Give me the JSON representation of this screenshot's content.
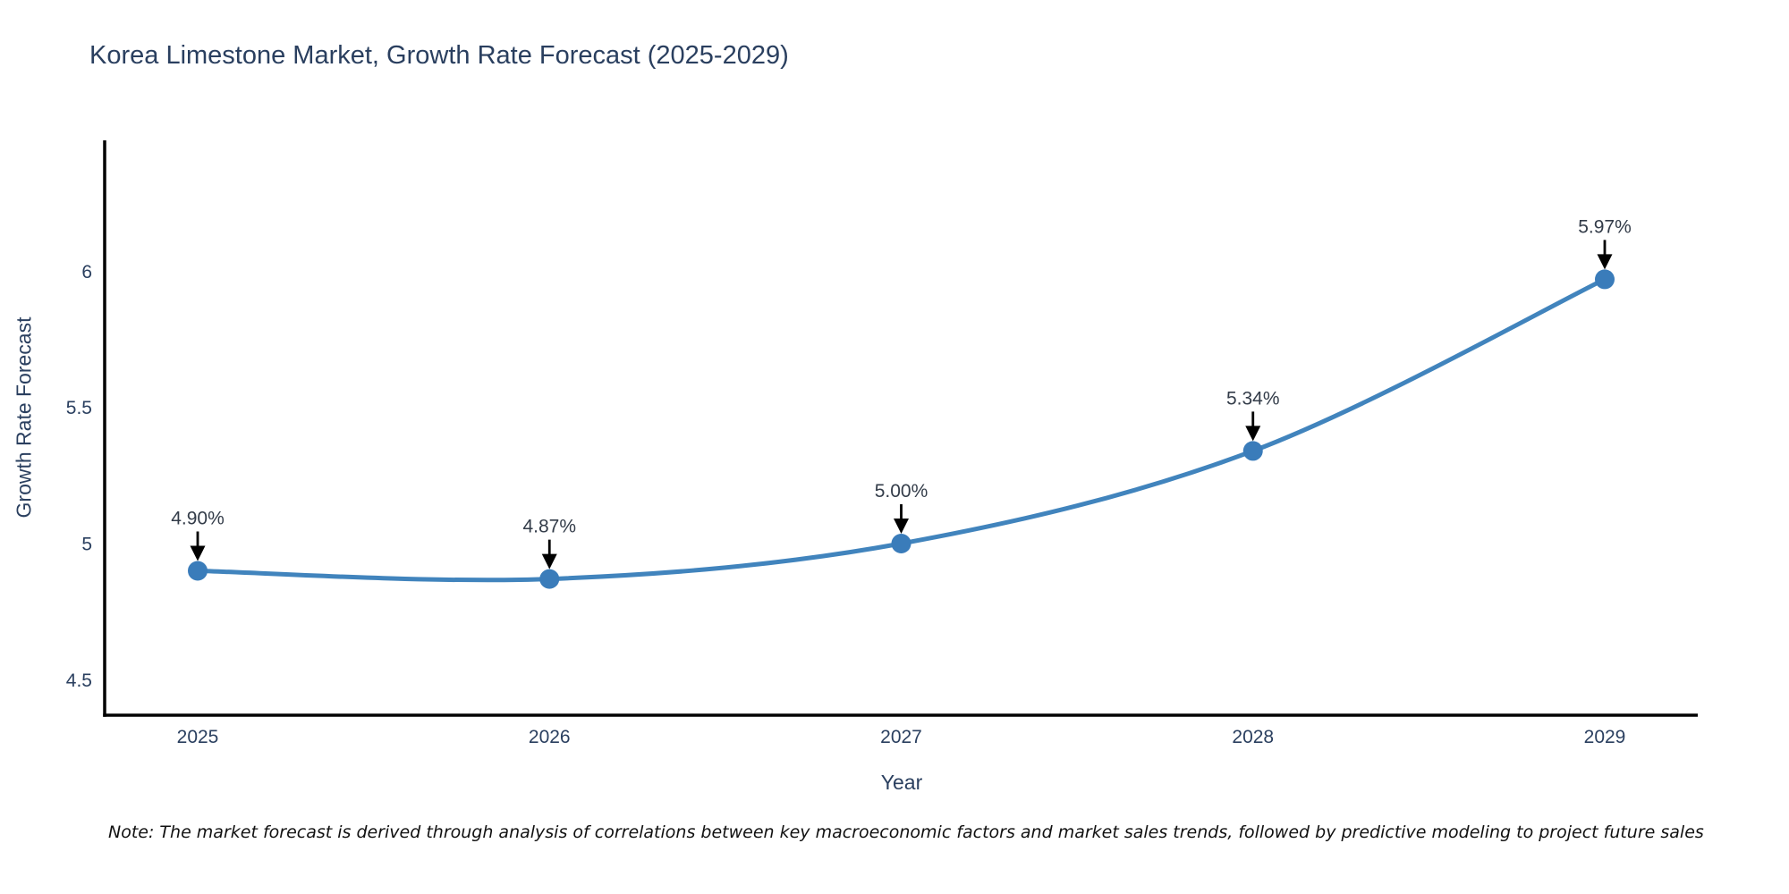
{
  "title": "Korea Limestone Market, Growth Rate Forecast (2025-2029)",
  "note": "Note: The market forecast is derived through analysis of correlations between key macroeconomic factors and market sales trends, followed by predictive modeling to project future sales",
  "colors": {
    "line": "#4184bd",
    "marker": "#3a7cba",
    "axis_line": "#000000",
    "arrow": "#000000",
    "title_text": "#2a3f5f",
    "axis_title_text": "#2a3f5f",
    "tick_text": "#2a3f5f",
    "annotation_text": "#333c49",
    "note_text": "#111111",
    "background": "#ffffff"
  },
  "chart_data": {
    "type": "line",
    "title": "Korea Limestone Market, Growth Rate Forecast (2025-2029)",
    "xlabel": "Year",
    "ylabel": "Growth Rate Forecast",
    "categories": [
      "2025",
      "2026",
      "2027",
      "2028",
      "2029"
    ],
    "series": [
      {
        "name": "Growth Rate Forecast",
        "values": [
          4.9,
          4.87,
          5.0,
          5.34,
          5.97
        ],
        "point_labels": [
          "4.90%",
          "4.87%",
          "5.00%",
          "5.34%",
          "5.97%"
        ]
      }
    ],
    "line_shape": "spline",
    "markers": true,
    "annotation_arrows": true,
    "ylim": [
      4.37,
      6.48
    ],
    "yticks": [
      4.5,
      5,
      5.5,
      6
    ],
    "ytick_labels": [
      "4.5",
      "5",
      "5.5",
      "6"
    ],
    "grid": false,
    "legend": false
  }
}
